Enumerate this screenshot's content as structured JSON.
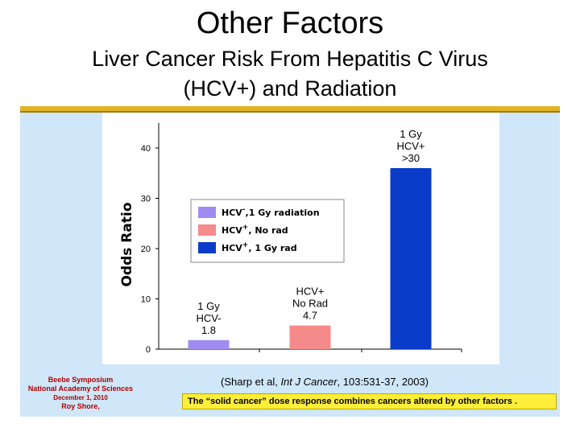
{
  "slide": {
    "title": "Other Factors",
    "subtitle_line1": "Liver Cancer Risk From Hepatitis C Virus",
    "subtitle_line2": "(HCV+) and Radiation"
  },
  "credits": {
    "line1": "Beebe Symposium",
    "line2": "National Academy of Sciences",
    "line3": "December 1, 2010",
    "line4": "Roy Shore,"
  },
  "citation": {
    "prefix": "(Sharp et al, ",
    "journal": "Int J Cancer",
    "suffix": ", 103:531-37, 2003)"
  },
  "note": "The “solid cancer” dose response combines cancers altered by other factors .",
  "colors": {
    "accent_rule": "#e2b422",
    "panel_bg": "#cfe7f9",
    "note_bg": "#ffef3a",
    "credit_text": "#b00000"
  },
  "chart_data": {
    "type": "bar",
    "title": "",
    "ylabel": "Odds Ratio",
    "xlabel": "",
    "ylim": [
      0,
      45
    ],
    "yticks": [
      0,
      10,
      20,
      30,
      40
    ],
    "grid": false,
    "legend_position": "center-left",
    "bars": [
      {
        "label_lines": [
          "1 Gy",
          "HCV-",
          "1.8"
        ],
        "value": 1.8,
        "color": "#a08cf0"
      },
      {
        "label_lines": [
          "HCV+",
          "No Rad",
          "4.7"
        ],
        "value": 4.7,
        "color": "#f58a8a"
      },
      {
        "label_lines": [
          "1 Gy",
          "HCV+",
          ">30"
        ],
        "value": 36,
        "color": "#0b3cc9"
      }
    ],
    "legend": [
      {
        "base": "HCV",
        "sup": "-",
        "rest": ",1 Gy radiation",
        "color": "#a08cf0"
      },
      {
        "base": "HCV",
        "sup": "+",
        "rest": ", No rad",
        "color": "#f58a8a"
      },
      {
        "base": "HCV",
        "sup": "+",
        "rest": ", 1 Gy rad",
        "color": "#0b3cc9"
      }
    ]
  }
}
